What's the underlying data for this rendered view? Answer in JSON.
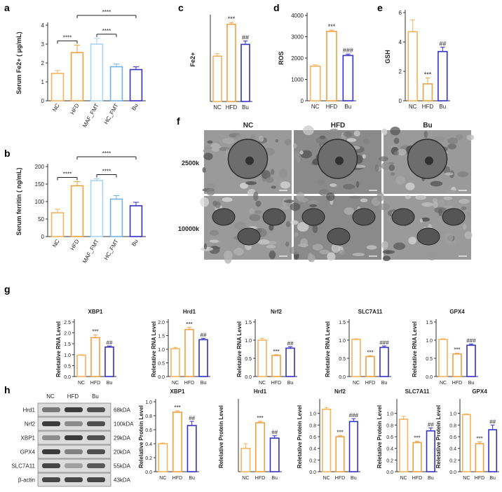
{
  "colors": {
    "nc": "#f5b35a",
    "hfd": "#f0a040",
    "bu": "#3530c8",
    "maf": "#a9d4f2",
    "hc": "#6fb3e8",
    "axis": "#333333"
  },
  "panel_letters": [
    "a",
    "b",
    "c",
    "d",
    "e",
    "f",
    "g",
    "h"
  ],
  "micro": {
    "columns": [
      "NC",
      "HFD",
      "Bu"
    ],
    "rows": [
      "2500k",
      "10000k"
    ]
  },
  "western": {
    "columns": [
      "NC",
      "HFD",
      "Bu"
    ],
    "proteins": [
      {
        "name": "Hrd1",
        "size": "68kDA"
      },
      {
        "name": "Nrf2",
        "size": "100kDA"
      },
      {
        "name": "XBP1",
        "size": "29kDA"
      },
      {
        "name": "GPX4",
        "size": "20kDA"
      },
      {
        "name": "SLC7A11",
        "size": "55kDA"
      },
      {
        "name": "β-actin",
        "size": "43kDA"
      }
    ],
    "band_intensity": [
      [
        0.55,
        0.85,
        0.75
      ],
      [
        0.85,
        0.45,
        0.75
      ],
      [
        0.45,
        0.85,
        0.75
      ],
      [
        0.85,
        0.5,
        0.75
      ],
      [
        0.8,
        0.35,
        0.7
      ],
      [
        0.8,
        0.8,
        0.8
      ]
    ]
  },
  "chart_data": [
    {
      "id": "a",
      "type": "bar",
      "title": "",
      "ylabel": "Serum Fe2+ ( μg/mL)",
      "categories": [
        "NC",
        "HFD",
        "MAF_FMT",
        "HC_FMT",
        "Bu"
      ],
      "values": [
        1.45,
        2.55,
        3.0,
        1.8,
        1.65
      ],
      "errors": [
        0.15,
        0.4,
        0.3,
        0.15,
        0.15
      ],
      "ylim": [
        0,
        4
      ],
      "yticks": [
        0,
        1,
        2,
        3,
        4
      ],
      "annotations": [],
      "brackets": [
        {
          "from": 0,
          "to": 1,
          "label": "****"
        },
        {
          "from": 2,
          "to": 3,
          "label": "****"
        },
        {
          "from": 1,
          "to": 4,
          "label": "****"
        }
      ]
    },
    {
      "id": "b",
      "type": "bar",
      "title": "",
      "ylabel": "Serum ferritin ( ng/mL)",
      "categories": [
        "NC",
        "HFD",
        "MAF_FMT",
        "HC_FMT",
        "Bu"
      ],
      "values": [
        68,
        145,
        160,
        107,
        88
      ],
      "errors": [
        10,
        12,
        5,
        10,
        10
      ],
      "ylim": [
        0,
        200
      ],
      "yticks": [
        0,
        50,
        100,
        150,
        200
      ],
      "annotations": [],
      "brackets": [
        {
          "from": 0,
          "to": 1,
          "label": "****"
        },
        {
          "from": 2,
          "to": 3,
          "label": "****"
        },
        {
          "from": 1,
          "to": 4,
          "label": "****"
        }
      ]
    },
    {
      "id": "c",
      "type": "bar",
      "title": "",
      "ylabel": "Fe2+",
      "categories": [
        "NC",
        "HFD",
        "Bu"
      ],
      "values": [
        27,
        46,
        34
      ],
      "errors": [
        1.5,
        1,
        2
      ],
      "ylim": [
        0,
        50
      ],
      "yticks": [],
      "annotations": [
        "",
        "***",
        "##"
      ],
      "brackets": []
    },
    {
      "id": "d",
      "type": "bar",
      "title": "",
      "ylabel": "ROS",
      "categories": [
        "NC",
        "HFD",
        "Bu"
      ],
      "values": [
        1620,
        3250,
        2120
      ],
      "errors": [
        60,
        60,
        70
      ],
      "ylim": [
        0,
        4000
      ],
      "yticks": [
        0,
        1000,
        2000,
        3000,
        4000
      ],
      "annotations": [
        "",
        "***",
        "###"
      ],
      "brackets": []
    },
    {
      "id": "e",
      "type": "bar",
      "title": "",
      "ylabel": "GSH",
      "categories": [
        "NC",
        "HFD",
        "Bu"
      ],
      "values": [
        4.7,
        1.15,
        3.35
      ],
      "errors": [
        0.8,
        0.4,
        0.3
      ],
      "ylim": [
        0,
        6
      ],
      "yticks": [
        0,
        2,
        4,
        6
      ],
      "annotations": [
        "",
        "***",
        "##"
      ],
      "brackets": []
    },
    {
      "id": "g1",
      "type": "bar",
      "title": "XBP1",
      "ylabel": "Reletative RNA Level",
      "categories": [
        "NC",
        "HFD",
        "Bu"
      ],
      "values": [
        0.98,
        1.78,
        1.35
      ],
      "errors": [
        0.02,
        0.12,
        0.05
      ],
      "ylim": [
        0,
        2.5
      ],
      "yticks": [
        0.0,
        0.5,
        1.0,
        1.5,
        2.0,
        2.5
      ],
      "annotations": [
        "",
        "***",
        "##"
      ],
      "brackets": []
    },
    {
      "id": "g2",
      "type": "bar",
      "title": "Hrd1",
      "ylabel": "Reletative RNA Level",
      "categories": [
        "NC",
        "HFD",
        "Bu"
      ],
      "values": [
        1.02,
        1.72,
        1.35
      ],
      "errors": [
        0.05,
        0.08,
        0.05
      ],
      "ylim": [
        0,
        2.0
      ],
      "yticks": [
        0.0,
        0.5,
        1.0,
        1.5,
        2.0
      ],
      "annotations": [
        "",
        "***",
        "##"
      ],
      "brackets": []
    },
    {
      "id": "g3",
      "type": "bar",
      "title": "Nrf2",
      "ylabel": "Reletative RNA Level",
      "categories": [
        "NC",
        "HFD",
        "Bu"
      ],
      "values": [
        1.0,
        0.58,
        0.78
      ],
      "errors": [
        0.05,
        0.02,
        0.04
      ],
      "ylim": [
        0,
        1.5
      ],
      "yticks": [
        0.0,
        0.5,
        1.0,
        1.5
      ],
      "annotations": [
        "",
        "***",
        "##"
      ],
      "brackets": []
    },
    {
      "id": "g4",
      "type": "bar",
      "title": "SLC7A11",
      "ylabel": "Reletative RNA Level",
      "categories": [
        "NC",
        "HFD",
        "Bu"
      ],
      "values": [
        1.02,
        0.55,
        0.8
      ],
      "errors": [
        0.02,
        0.02,
        0.04
      ],
      "ylim": [
        0,
        1.5
      ],
      "yticks": [
        0.0,
        0.5,
        1.0,
        1.5
      ],
      "annotations": [
        "",
        "***",
        "###"
      ],
      "brackets": []
    },
    {
      "id": "g5",
      "type": "bar",
      "title": "GPX4",
      "ylabel": "Reletative RNA Level",
      "categories": [
        "NC",
        "HFD",
        "Bu"
      ],
      "values": [
        1.02,
        0.62,
        0.86
      ],
      "errors": [
        0.02,
        0.02,
        0.03
      ],
      "ylim": [
        0,
        1.5
      ],
      "yticks": [
        0.0,
        0.5,
        1.0,
        1.5
      ],
      "annotations": [
        "",
        "***",
        "###"
      ],
      "brackets": []
    },
    {
      "id": "h1",
      "type": "bar",
      "title": "XBP1",
      "ylabel": "Relelative Protein Level",
      "categories": [
        "NC",
        "HFD",
        "Bu"
      ],
      "values": [
        0.4,
        0.85,
        0.66
      ],
      "errors": [
        0.01,
        0.02,
        0.06
      ],
      "ylim": [
        0,
        1.0
      ],
      "yticks": [
        0.0,
        0.2,
        0.4,
        0.6,
        0.8,
        1.0
      ],
      "annotations": [
        "",
        "***",
        "##"
      ],
      "brackets": []
    },
    {
      "id": "h2",
      "type": "bar",
      "title": "Hrd1",
      "ylabel": "Relelative Protein Level",
      "categories": [
        "NC",
        "HFD",
        "Bu"
      ],
      "values": [
        0.5,
        1.05,
        0.72
      ],
      "errors": [
        0.1,
        0.03,
        0.05
      ],
      "ylim": [
        0,
        1.5
      ],
      "yticks": [],
      "annotations": [
        "",
        "***",
        "##"
      ],
      "brackets": []
    },
    {
      "id": "h3",
      "type": "bar",
      "title": "Nrf2",
      "ylabel": "Reletative Protein Level",
      "categories": [
        "NC",
        "HFD",
        "Bu"
      ],
      "values": [
        1.07,
        0.6,
        0.86
      ],
      "errors": [
        0.03,
        0.02,
        0.05
      ],
      "ylim": [
        0,
        1.2
      ],
      "yticks": [
        0.0,
        0.2,
        0.4,
        0.6,
        0.8,
        1.0
      ],
      "annotations": [
        "",
        "***",
        "###"
      ],
      "brackets": []
    },
    {
      "id": "h4",
      "type": "bar",
      "title": "SLC7A11",
      "ylabel": "Reletative Protein Level",
      "categories": [
        "NC",
        "HFD",
        "Bu"
      ],
      "values": [
        0.9,
        0.5,
        0.7
      ],
      "errors": [
        0.05,
        0.02,
        0.05
      ],
      "ylim": [
        0,
        1.2
      ],
      "yticks": [
        0.0,
        0.2,
        0.4,
        0.6,
        0.8,
        1.0
      ],
      "annotations": [
        "",
        "***",
        "##"
      ],
      "brackets": []
    },
    {
      "id": "h5",
      "type": "bar",
      "title": "GPX4",
      "ylabel": "Reletative Protein Level",
      "categories": [
        "NC",
        "HFD",
        "Bu"
      ],
      "values": [
        0.98,
        0.48,
        0.72
      ],
      "errors": [
        0.01,
        0.03,
        0.08
      ],
      "ylim": [
        0,
        1.2
      ],
      "yticks": [
        0.0,
        0.2,
        0.4,
        0.6,
        0.8,
        1.0
      ],
      "annotations": [
        "",
        "***",
        "##"
      ],
      "brackets": []
    }
  ]
}
